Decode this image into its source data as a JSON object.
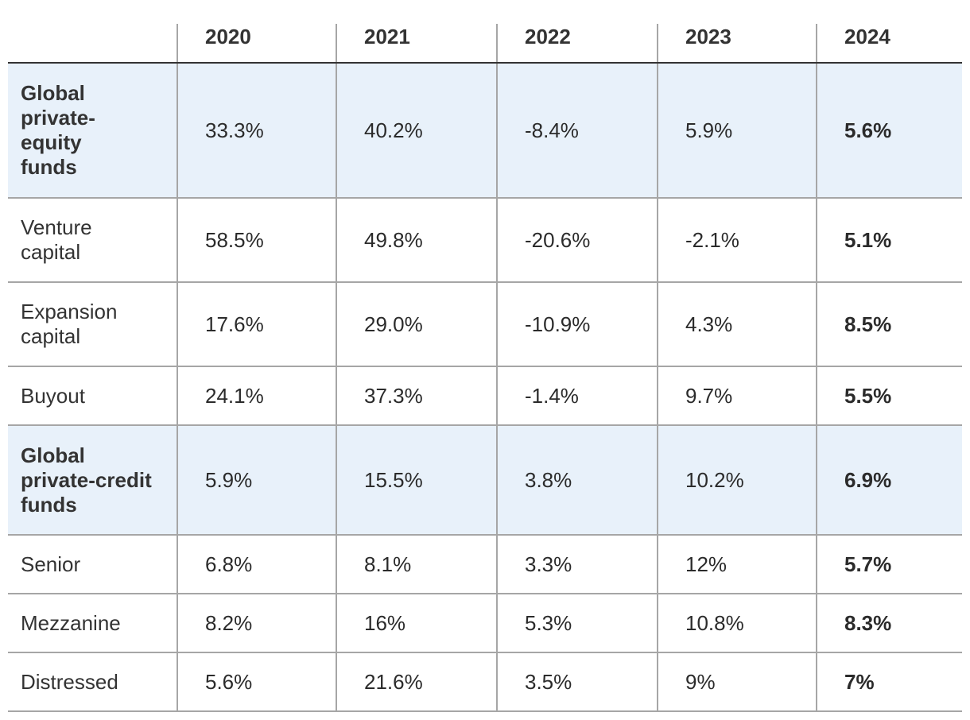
{
  "chart_data": {
    "type": "table",
    "columns": [
      "",
      "2020",
      "2021",
      "2022",
      "2023",
      "2024"
    ],
    "rows": [
      {
        "label": "Global private-equity funds",
        "highlight": true,
        "values": [
          "33.3%",
          "40.2%",
          "-8.4%",
          "5.9%",
          "5.6%"
        ]
      },
      {
        "label": "Venture capital",
        "highlight": false,
        "values": [
          "58.5%",
          "49.8%",
          "-20.6%",
          "-2.1%",
          "5.1%"
        ]
      },
      {
        "label": "Expansion capital",
        "highlight": false,
        "values": [
          "17.6%",
          "29.0%",
          "-10.9%",
          "4.3%",
          "8.5%"
        ]
      },
      {
        "label": "Buyout",
        "highlight": false,
        "values": [
          "24.1%",
          "37.3%",
          "-1.4%",
          "9.7%",
          "5.5%"
        ]
      },
      {
        "label": "Global private-credit funds",
        "highlight": true,
        "values": [
          "5.9%",
          "15.5%",
          "3.8%",
          "10.2%",
          "6.9%"
        ]
      },
      {
        "label": "Senior",
        "highlight": false,
        "values": [
          "6.8%",
          "8.1%",
          "3.3%",
          "12%",
          "5.7%"
        ]
      },
      {
        "label": "Mezzanine",
        "highlight": false,
        "values": [
          "8.2%",
          "16%",
          "5.3%",
          "10.8%",
          "8.3%"
        ]
      },
      {
        "label": "Distressed",
        "highlight": false,
        "values": [
          "5.6%",
          "21.6%",
          "3.5%",
          "9%",
          "7%"
        ]
      }
    ],
    "colors": {
      "highlight_row": "#e8f1fa",
      "grid": "#a6a6a6",
      "header_rule": "#333333",
      "text": "#2b2b2b"
    }
  }
}
